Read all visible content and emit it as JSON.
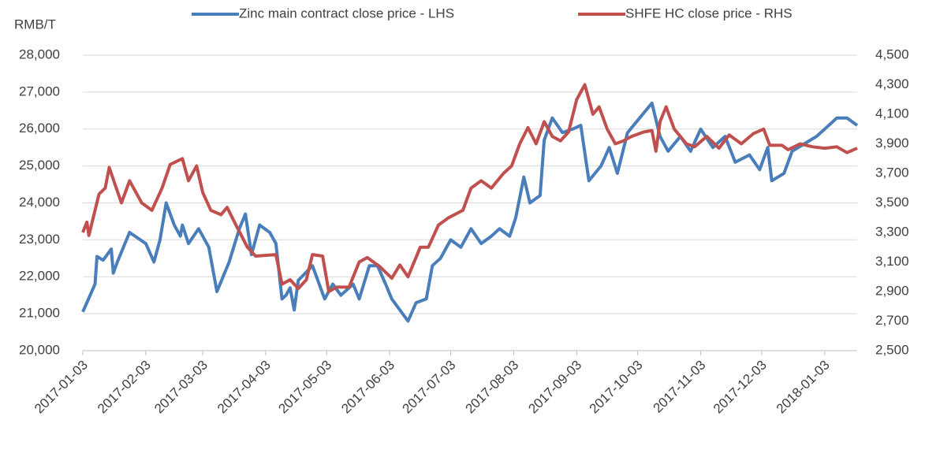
{
  "chart_data": {
    "type": "line",
    "y_label": "RMB/T",
    "xlim": [
      "2017-01-03",
      "2018-01-19"
    ],
    "xticks": [
      "2017-01-03",
      "2017-02-03",
      "2017-03-03",
      "2017-04-03",
      "2017-05-03",
      "2017-06-03",
      "2017-07-03",
      "2017-08-03",
      "2017-09-03",
      "2017-10-03",
      "2017-11-03",
      "2017-12-03",
      "2018-01-03"
    ],
    "ylim": [
      20000,
      28000
    ],
    "yticks": [
      {
        "value": 20000,
        "label": "20,000"
      },
      {
        "value": 21000,
        "label": "21,000"
      },
      {
        "value": 22000,
        "label": "22,000"
      },
      {
        "value": 23000,
        "label": "23,000"
      },
      {
        "value": 24000,
        "label": "24,000"
      },
      {
        "value": 25000,
        "label": "25,000"
      },
      {
        "value": 26000,
        "label": "26,000"
      },
      {
        "value": 27000,
        "label": "27,000"
      },
      {
        "value": 28000,
        "label": "28,000"
      }
    ],
    "y2lim": [
      2500,
      4500
    ],
    "y2ticks": [
      {
        "value": 2500,
        "label": "2,500"
      },
      {
        "value": 2700,
        "label": "2,700"
      },
      {
        "value": 2900,
        "label": "2,900"
      },
      {
        "value": 3100,
        "label": "3,100"
      },
      {
        "value": 3300,
        "label": "3,300"
      },
      {
        "value": 3500,
        "label": "3,500"
      },
      {
        "value": 3700,
        "label": "3,700"
      },
      {
        "value": 3900,
        "label": "3,900"
      },
      {
        "value": 4100,
        "label": "4,100"
      },
      {
        "value": 4300,
        "label": "4,300"
      },
      {
        "value": 4500,
        "label": "4,500"
      }
    ],
    "grid": true,
    "legend": "top",
    "series": [
      {
        "name": "Zinc main contract close price - LHS",
        "color": "#4a7ebb",
        "axis": "y",
        "x": [
          "2017-01-03",
          "2017-01-05",
          "2017-01-09",
          "2017-01-10",
          "2017-01-13",
          "2017-01-17",
          "2017-01-18",
          "2017-01-20",
          "2017-01-23",
          "2017-01-26",
          "2017-02-03",
          "2017-02-07",
          "2017-02-10",
          "2017-02-13",
          "2017-02-17",
          "2017-02-20",
          "2017-02-21",
          "2017-02-24",
          "2017-03-01",
          "2017-03-06",
          "2017-03-10",
          "2017-03-16",
          "2017-03-21",
          "2017-03-24",
          "2017-03-27",
          "2017-03-31",
          "2017-04-05",
          "2017-04-08",
          "2017-04-11",
          "2017-04-13",
          "2017-04-15",
          "2017-04-17",
          "2017-04-19",
          "2017-04-26",
          "2017-05-02",
          "2017-05-06",
          "2017-05-10",
          "2017-05-16",
          "2017-05-19",
          "2017-05-24",
          "2017-05-28",
          "2017-06-01",
          "2017-06-04",
          "2017-06-08",
          "2017-06-12",
          "2017-06-16",
          "2017-06-21",
          "2017-06-24",
          "2017-06-28",
          "2017-07-03",
          "2017-07-08",
          "2017-07-13",
          "2017-07-18",
          "2017-07-23",
          "2017-07-27",
          "2017-08-01",
          "2017-08-04",
          "2017-08-08",
          "2017-08-11",
          "2017-08-16",
          "2017-08-18",
          "2017-08-22",
          "2017-08-27",
          "2017-09-01",
          "2017-09-05",
          "2017-09-09",
          "2017-09-15",
          "2017-09-19",
          "2017-09-23",
          "2017-09-28",
          "2017-10-04",
          "2017-10-10",
          "2017-10-14",
          "2017-10-18",
          "2017-10-24",
          "2017-10-29",
          "2017-11-03",
          "2017-11-09",
          "2017-11-15",
          "2017-11-20",
          "2017-11-27",
          "2017-12-02",
          "2017-12-06",
          "2017-12-08",
          "2017-12-14",
          "2017-12-18",
          "2017-12-24",
          "2017-12-30",
          "2018-01-03",
          "2018-01-09",
          "2018-01-14",
          "2018-01-19"
        ],
        "values": [
          21050,
          21300,
          21800,
          22550,
          22450,
          22750,
          22100,
          22400,
          22800,
          23200,
          22900,
          22400,
          23000,
          24000,
          23400,
          23100,
          23400,
          22900,
          23300,
          22800,
          21600,
          22400,
          23300,
          23700,
          22600,
          23400,
          23200,
          22900,
          21400,
          21500,
          21700,
          21100,
          21900,
          22300,
          21400,
          21800,
          21500,
          21800,
          21400,
          22300,
          22300,
          21800,
          21400,
          21100,
          20800,
          21300,
          21400,
          22300,
          22500,
          23000,
          22800,
          23300,
          22900,
          23100,
          23300,
          23100,
          23600,
          24700,
          24000,
          24200,
          25700,
          26300,
          25900,
          26000,
          26100,
          24600,
          25000,
          25500,
          24800,
          25900,
          26300,
          26700,
          25800,
          25400,
          25800,
          25400,
          26000,
          25500,
          25800,
          25100,
          25300,
          24900,
          25500,
          24600,
          24800,
          25400,
          25600,
          25800,
          26000,
          26300,
          26300,
          26100
        ]
      },
      {
        "name": "SHFE HC close price - RHS",
        "color": "#c0504d",
        "axis": "y2",
        "x": [
          "2017-01-03",
          "2017-01-05",
          "2017-01-06",
          "2017-01-11",
          "2017-01-14",
          "2017-01-16",
          "2017-01-19",
          "2017-01-22",
          "2017-01-26",
          "2017-02-01",
          "2017-02-06",
          "2017-02-11",
          "2017-02-15",
          "2017-02-18",
          "2017-02-21",
          "2017-02-24",
          "2017-02-28",
          "2017-03-03",
          "2017-03-07",
          "2017-03-12",
          "2017-03-15",
          "2017-03-19",
          "2017-03-25",
          "2017-03-29",
          "2017-04-08",
          "2017-04-11",
          "2017-04-15",
          "2017-04-19",
          "2017-04-23",
          "2017-04-26",
          "2017-05-01",
          "2017-05-04",
          "2017-05-08",
          "2017-05-14",
          "2017-05-19",
          "2017-05-23",
          "2017-05-29",
          "2017-06-04",
          "2017-06-08",
          "2017-06-12",
          "2017-06-18",
          "2017-06-22",
          "2017-06-27",
          "2017-07-02",
          "2017-07-09",
          "2017-07-13",
          "2017-07-18",
          "2017-07-23",
          "2017-07-29",
          "2017-08-02",
          "2017-08-06",
          "2017-08-10",
          "2017-08-14",
          "2017-08-18",
          "2017-08-22",
          "2017-08-26",
          "2017-08-30",
          "2017-09-03",
          "2017-09-07",
          "2017-09-11",
          "2017-09-14",
          "2017-09-18",
          "2017-09-22",
          "2017-09-26",
          "2017-09-30",
          "2017-10-06",
          "2017-10-10",
          "2017-10-12",
          "2017-10-14",
          "2017-10-17",
          "2017-10-21",
          "2017-10-27",
          "2017-10-31",
          "2017-11-06",
          "2017-11-12",
          "2017-11-17",
          "2017-11-23",
          "2017-11-29",
          "2017-12-04",
          "2017-12-07",
          "2017-12-13",
          "2017-12-16",
          "2017-12-22",
          "2017-12-28",
          "2018-01-03",
          "2018-01-09",
          "2018-01-14",
          "2018-01-19"
        ],
        "values": [
          3300,
          3370,
          3280,
          3560,
          3600,
          3740,
          3620,
          3500,
          3650,
          3500,
          3450,
          3600,
          3760,
          3780,
          3800,
          3650,
          3750,
          3570,
          3450,
          3420,
          3470,
          3360,
          3200,
          3140,
          3150,
          2950,
          2980,
          2920,
          2980,
          3150,
          3140,
          2900,
          2930,
          2930,
          3100,
          3130,
          3070,
          2990,
          3080,
          3000,
          3200,
          3200,
          3350,
          3400,
          3450,
          3600,
          3650,
          3600,
          3700,
          3750,
          3900,
          4010,
          3900,
          4050,
          3950,
          3920,
          3980,
          4200,
          4300,
          4100,
          4150,
          4000,
          3900,
          3920,
          3950,
          3980,
          3990,
          3850,
          4050,
          4150,
          4000,
          3900,
          3880,
          3950,
          3870,
          3960,
          3900,
          3970,
          4000,
          3890,
          3890,
          3860,
          3900,
          3880,
          3870,
          3880,
          3840,
          3870
        ]
      }
    ]
  }
}
